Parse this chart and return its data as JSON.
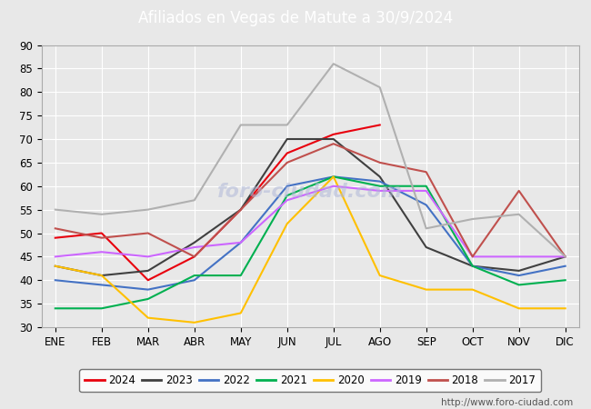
{
  "title": "Afiliados en Vegas de Matute a 30/9/2024",
  "title_color": "#ffffff",
  "title_bg_color": "#4472c4",
  "ylim": [
    30,
    90
  ],
  "yticks": [
    30,
    35,
    40,
    45,
    50,
    55,
    60,
    65,
    70,
    75,
    80,
    85,
    90
  ],
  "months": [
    "ENE",
    "FEB",
    "MAR",
    "ABR",
    "MAY",
    "JUN",
    "JUL",
    "AGO",
    "SEP",
    "OCT",
    "NOV",
    "DIC"
  ],
  "series": {
    "2024": {
      "color": "#e8000d",
      "data": [
        49,
        50,
        40,
        45,
        55,
        67,
        71,
        73,
        null,
        null,
        null,
        null
      ]
    },
    "2023": {
      "color": "#404040",
      "data": [
        43,
        41,
        42,
        48,
        55,
        70,
        70,
        62,
        47,
        43,
        42,
        45
      ]
    },
    "2022": {
      "color": "#4472c4",
      "data": [
        40,
        39,
        38,
        40,
        48,
        60,
        62,
        61,
        56,
        43,
        41,
        43
      ]
    },
    "2021": {
      "color": "#00b050",
      "data": [
        34,
        34,
        36,
        41,
        41,
        58,
        62,
        60,
        60,
        43,
        39,
        40
      ]
    },
    "2020": {
      "color": "#ffc000",
      "data": [
        43,
        41,
        32,
        31,
        33,
        52,
        62,
        41,
        38,
        38,
        34,
        34
      ]
    },
    "2019": {
      "color": "#cc66ff",
      "data": [
        45,
        46,
        45,
        47,
        48,
        57,
        60,
        59,
        59,
        45,
        45,
        45
      ]
    },
    "2018": {
      "color": "#c0504d",
      "data": [
        51,
        49,
        50,
        45,
        55,
        65,
        69,
        65,
        63,
        45,
        59,
        45
      ]
    },
    "2017": {
      "color": "#b0b0b0",
      "data": [
        55,
        54,
        55,
        57,
        73,
        73,
        86,
        81,
        51,
        53,
        54,
        45
      ]
    }
  },
  "plot_bg_color": "#e8e8e8",
  "fig_bg_color": "#e8e8e8",
  "grid_color": "#ffffff",
  "footer_url": "http://www.foro-ciudad.com",
  "series_order": [
    "2024",
    "2023",
    "2022",
    "2021",
    "2020",
    "2019",
    "2018",
    "2017"
  ]
}
